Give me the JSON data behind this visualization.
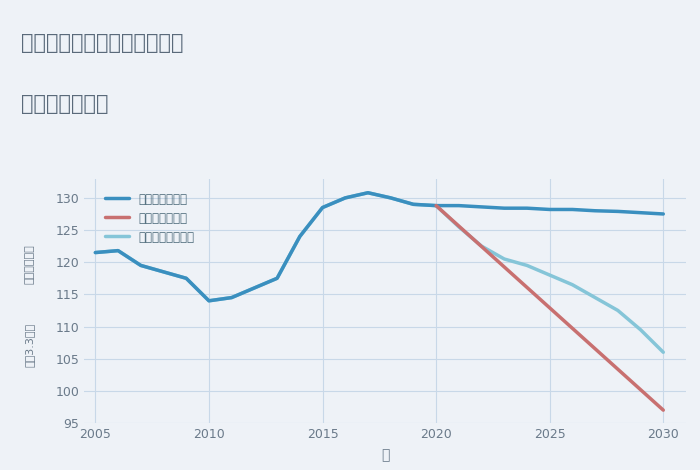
{
  "title_line1": "兵庫県西宮市甲子園高潮町の",
  "title_line2": "土地の価格推移",
  "xlabel": "年",
  "ylabel_top": "単価（万円）",
  "ylabel_bottom": "坪（3.3㎡）",
  "ylim": [
    95,
    133
  ],
  "yticks": [
    95,
    100,
    105,
    110,
    115,
    120,
    125,
    130
  ],
  "background_color": "#eef2f7",
  "plot_background": "#eef2f7",
  "good_scenario": {
    "label": "グッドシナリオ",
    "color": "#3a8fbf",
    "x": [
      2005,
      2006,
      2007,
      2008,
      2009,
      2010,
      2011,
      2012,
      2013,
      2014,
      2015,
      2016,
      2017,
      2018,
      2019,
      2020,
      2021,
      2022,
      2023,
      2024,
      2025,
      2026,
      2027,
      2028,
      2029,
      2030
    ],
    "y": [
      121.5,
      121.8,
      119.5,
      118.5,
      117.5,
      114.0,
      114.5,
      116.0,
      117.5,
      124.0,
      128.5,
      130.0,
      130.8,
      130.0,
      129.0,
      128.8,
      128.8,
      128.6,
      128.4,
      128.4,
      128.2,
      128.2,
      128.0,
      127.9,
      127.7,
      127.5
    ],
    "linewidth": 2.5,
    "linestyle": "-"
  },
  "bad_scenario": {
    "label": "バッドシナリオ",
    "color": "#c87070",
    "x": [
      2020,
      2030
    ],
    "y": [
      128.8,
      97.0
    ],
    "linewidth": 2.5,
    "linestyle": "-"
  },
  "normal_scenario": {
    "label": "ノーマルシナリオ",
    "color": "#85c5d8",
    "x": [
      2005,
      2006,
      2007,
      2008,
      2009,
      2010,
      2011,
      2012,
      2013,
      2014,
      2015,
      2016,
      2017,
      2018,
      2019,
      2020,
      2021,
      2022,
      2023,
      2024,
      2025,
      2026,
      2027,
      2028,
      2029,
      2030
    ],
    "y": [
      121.5,
      121.8,
      119.5,
      118.5,
      117.5,
      114.0,
      114.5,
      116.0,
      117.5,
      124.0,
      128.5,
      130.0,
      130.8,
      130.0,
      129.0,
      128.8,
      125.5,
      122.5,
      120.5,
      119.5,
      118.0,
      116.5,
      114.5,
      112.5,
      109.5,
      106.0
    ],
    "linewidth": 2.5,
    "linestyle": "-"
  },
  "grid_color": "#c8d8e8",
  "title_color": "#5a6a7a",
  "axis_color": "#6a7a8a",
  "legend_text_color": "#4a6878"
}
